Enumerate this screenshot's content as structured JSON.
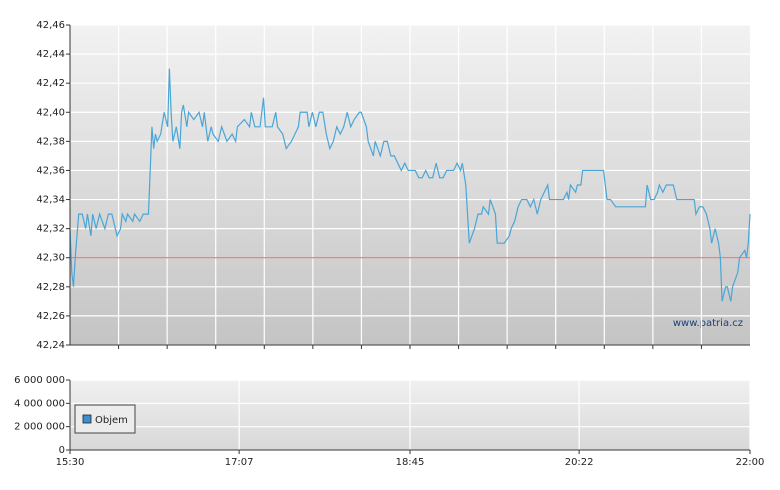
{
  "chart_data": [
    {
      "type": "line",
      "watermark": "www.patria.cz",
      "reference_line": 42.3,
      "reference_color": "#e06060",
      "grid": true,
      "xlim": [
        "15:30",
        "22:00"
      ],
      "ylim": [
        42.24,
        42.46
      ],
      "yticks": [
        {
          "value": 42.24,
          "label": "42,24"
        },
        {
          "value": 42.26,
          "label": "42,26"
        },
        {
          "value": 42.28,
          "label": "42,28"
        },
        {
          "value": 42.3,
          "label": "42,30"
        },
        {
          "value": 42.32,
          "label": "42,32"
        },
        {
          "value": 42.34,
          "label": "42,34"
        },
        {
          "value": 42.36,
          "label": "42,36"
        },
        {
          "value": 42.38,
          "label": "42,38"
        },
        {
          "value": 42.4,
          "label": "42,40"
        },
        {
          "value": 42.42,
          "label": "42,42"
        },
        {
          "value": 42.44,
          "label": "42,44"
        },
        {
          "value": 42.46,
          "label": "42,46"
        }
      ],
      "x": [
        "15:30",
        "15:31",
        "15:32",
        "15:33",
        "15:35",
        "15:37",
        "15:39",
        "15:40",
        "15:42",
        "15:43",
        "15:45",
        "15:47",
        "15:50",
        "15:52",
        "15:54",
        "15:57",
        "15:59",
        "16:00",
        "16:02",
        "16:03",
        "16:06",
        "16:07",
        "16:10",
        "16:12",
        "16:15",
        "16:16",
        "16:17",
        "16:18",
        "16:19",
        "16:20",
        "16:22",
        "16:24",
        "16:26",
        "16:27",
        "16:28",
        "16:29",
        "16:31",
        "16:33",
        "16:34",
        "16:35",
        "16:37",
        "16:38",
        "16:41",
        "16:44",
        "16:46",
        "16:47",
        "16:49",
        "16:51",
        "16:52",
        "16:55",
        "16:57",
        "17:00",
        "17:03",
        "17:05",
        "17:06",
        "17:10",
        "17:13",
        "17:14",
        "17:16",
        "17:19",
        "17:21",
        "17:22",
        "17:26",
        "17:28",
        "17:29",
        "17:32",
        "17:34",
        "17:37",
        "17:41",
        "17:42",
        "17:46",
        "17:47",
        "17:49",
        "17:51",
        "17:53",
        "17:55",
        "17:57",
        "17:59",
        "18:01",
        "18:03",
        "18:05",
        "18:07",
        "18:09",
        "18:11",
        "18:13",
        "18:16",
        "18:17",
        "18:20",
        "18:21",
        "18:24",
        "18:25",
        "18:28",
        "18:30",
        "18:32",
        "18:34",
        "18:36",
        "18:38",
        "18:40",
        "18:42",
        "18:44",
        "18:48",
        "18:50",
        "18:52",
        "18:54",
        "18:56",
        "18:58",
        "19:00",
        "19:02",
        "19:04",
        "19:06",
        "19:10",
        "19:12",
        "19:14",
        "19:15",
        "19:17",
        "19:18",
        "19:19",
        "19:22",
        "19:24",
        "19:26",
        "19:27",
        "19:30",
        "19:31",
        "19:34",
        "19:35",
        "19:37",
        "19:39",
        "19:42",
        "19:43",
        "19:45",
        "19:47",
        "19:49",
        "19:52",
        "19:54",
        "19:56",
        "19:58",
        "20:00",
        "20:02",
        "20:04",
        "20:05",
        "20:09",
        "20:13",
        "20:15",
        "20:16",
        "20:17",
        "20:20",
        "20:21",
        "20:23",
        "20:24",
        "20:32",
        "20:36",
        "20:38",
        "20:40",
        "20:43",
        "20:52",
        "21:00",
        "21:01",
        "21:03",
        "21:05",
        "21:07",
        "21:08",
        "21:10",
        "21:12",
        "21:16",
        "21:18",
        "21:23",
        "21:28",
        "21:29",
        "21:31",
        "21:33",
        "21:35",
        "21:37",
        "21:38",
        "21:40",
        "21:42",
        "21:43",
        "21:44",
        "21:46",
        "21:47",
        "21:49",
        "21:50",
        "21:53",
        "21:54",
        "21:57",
        "21:58",
        "21:59",
        "22:00"
      ],
      "series": [
        {
          "color": "#4aa6d6",
          "values": [
            42.32,
            42.29,
            42.28,
            42.3,
            42.33,
            42.33,
            42.32,
            42.33,
            42.315,
            42.33,
            42.32,
            42.33,
            42.32,
            42.33,
            42.33,
            42.315,
            42.32,
            42.33,
            42.325,
            42.33,
            42.325,
            42.33,
            42.325,
            42.33,
            42.33,
            42.36,
            42.39,
            42.375,
            42.385,
            42.38,
            42.385,
            42.4,
            42.39,
            42.43,
            42.4,
            42.38,
            42.39,
            42.375,
            42.4,
            42.405,
            42.39,
            42.4,
            42.395,
            42.4,
            42.39,
            42.4,
            42.38,
            42.39,
            42.385,
            42.38,
            42.39,
            42.38,
            42.385,
            42.38,
            42.39,
            42.395,
            42.39,
            42.4,
            42.39,
            42.39,
            42.41,
            42.39,
            42.39,
            42.4,
            42.39,
            42.385,
            42.375,
            42.38,
            42.39,
            42.4,
            42.4,
            42.39,
            42.4,
            42.39,
            42.4,
            42.4,
            42.385,
            42.375,
            42.38,
            42.39,
            42.385,
            42.39,
            42.4,
            42.39,
            42.395,
            42.4,
            42.4,
            42.39,
            42.38,
            42.37,
            42.38,
            42.37,
            42.38,
            42.38,
            42.37,
            42.37,
            42.365,
            42.36,
            42.365,
            42.36,
            42.36,
            42.355,
            42.355,
            42.36,
            42.355,
            42.355,
            42.365,
            42.355,
            42.355,
            42.36,
            42.36,
            42.365,
            42.36,
            42.365,
            42.35,
            42.33,
            42.31,
            42.32,
            42.33,
            42.33,
            42.335,
            42.33,
            42.34,
            42.33,
            42.31,
            42.31,
            42.31,
            42.315,
            42.32,
            42.325,
            42.335,
            42.34,
            42.34,
            42.335,
            42.34,
            42.33,
            42.34,
            42.345,
            42.35,
            42.34,
            42.34,
            42.34,
            42.345,
            42.34,
            42.35,
            42.345,
            42.35,
            42.35,
            42.36,
            42.36,
            42.36,
            42.34,
            42.34,
            42.335,
            42.335,
            42.335,
            42.35,
            42.34,
            42.34,
            42.345,
            42.35,
            42.345,
            42.35,
            42.35,
            42.34,
            42.34,
            42.34,
            42.33,
            42.335,
            42.335,
            42.33,
            42.32,
            42.31,
            42.32,
            42.31,
            42.3,
            42.27,
            42.28,
            42.28,
            42.27,
            42.28,
            42.29,
            42.3,
            42.305,
            42.3,
            42.31,
            42.33
          ]
        }
      ]
    },
    {
      "type": "bar",
      "legend": "inside-left",
      "grid": true,
      "xlim": [
        "15:30",
        "22:00"
      ],
      "xticks": [
        "15:30",
        "17:07",
        "18:45",
        "20:22",
        "22:00"
      ],
      "ylim": [
        0,
        6000000
      ],
      "yticks": [
        0,
        {
          "value": 2000000,
          "label": "2 000 000"
        },
        {
          "value": 4000000,
          "label": "4 000 000"
        },
        {
          "value": 6000000,
          "label": "6 000 000"
        }
      ],
      "x": [],
      "series": [
        {
          "name": "Objem",
          "color": "#3d8fcf",
          "values": []
        }
      ]
    }
  ]
}
